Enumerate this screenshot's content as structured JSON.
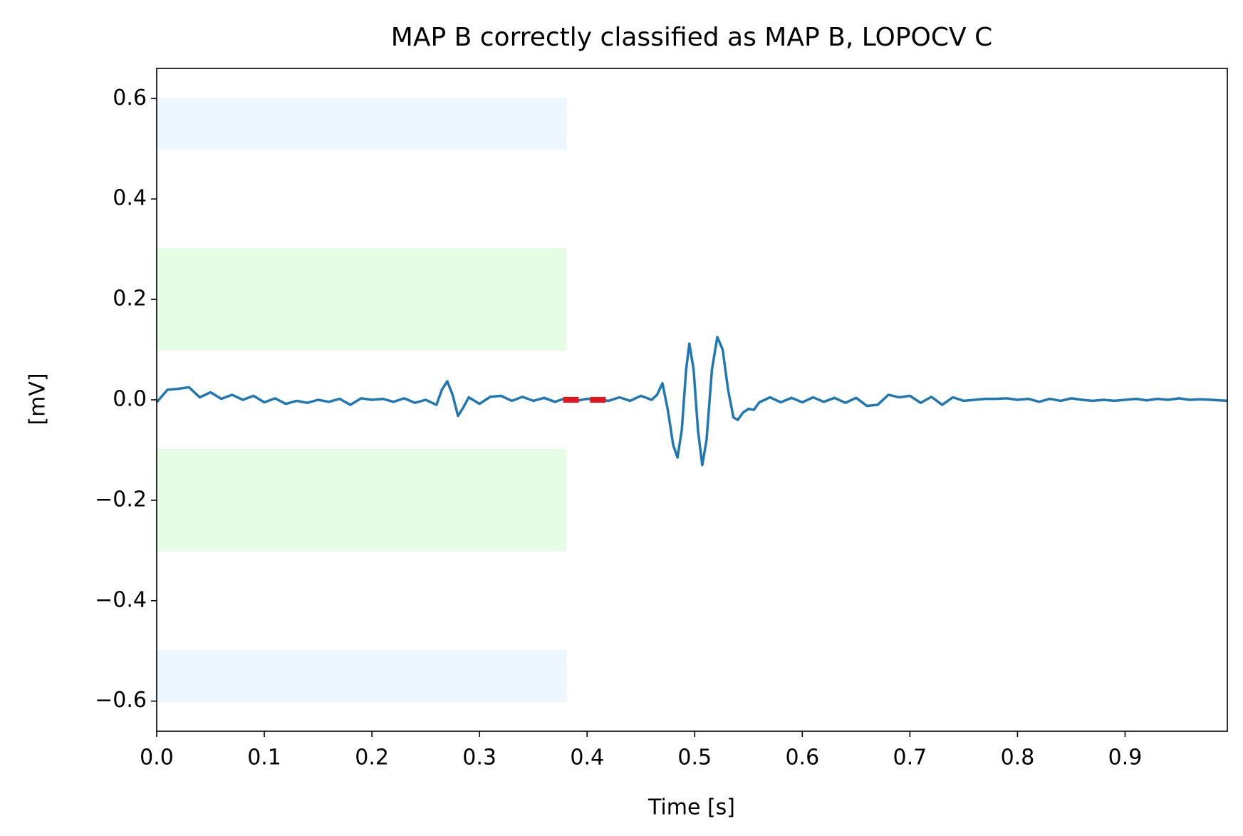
{
  "chart_data": {
    "type": "line",
    "title": "MAP B correctly classified as MAP B, LOPOCV C",
    "x_label": "Time [s]",
    "y_label": "[mV]",
    "xlim": [
      0,
      0.995
    ],
    "ylim": [
      -0.66,
      0.66
    ],
    "xticks": [
      {
        "value": 0,
        "label": "0.0"
      },
      0.1,
      0.2,
      0.3,
      0.4,
      0.5,
      0.6,
      0.7,
      0.8,
      0.9
    ],
    "yticks": [
      {
        "value": -0.6,
        "label": "−0.6"
      },
      {
        "value": -0.4,
        "label": "−0.4"
      },
      {
        "value": -0.2,
        "label": "−0.2"
      },
      {
        "value": 0,
        "label": "0.0"
      },
      0.2,
      0.4,
      0.6
    ],
    "x": [
      0,
      0.01,
      0.02,
      0.03,
      0.04,
      0.05,
      0.06,
      0.07,
      0.08,
      0.09,
      0.1,
      0.11,
      0.12,
      0.13,
      0.14,
      0.15,
      0.16,
      0.17,
      0.18,
      0.19,
      0.2,
      0.21,
      0.22,
      0.23,
      0.24,
      0.25,
      0.26,
      0.265,
      0.27,
      0.275,
      0.28,
      0.285,
      0.29,
      0.3,
      0.31,
      0.32,
      0.33,
      0.34,
      0.35,
      0.36,
      0.37,
      0.38,
      0.39,
      0.4,
      0.41,
      0.42,
      0.43,
      0.44,
      0.45,
      0.46,
      0.465,
      0.47,
      0.475,
      0.48,
      0.484,
      0.488,
      0.492,
      0.495,
      0.499,
      0.503,
      0.507,
      0.511,
      0.516,
      0.521,
      0.526,
      0.531,
      0.536,
      0.54,
      0.545,
      0.55,
      0.555,
      0.56,
      0.57,
      0.58,
      0.59,
      0.6,
      0.61,
      0.62,
      0.63,
      0.64,
      0.65,
      0.66,
      0.67,
      0.68,
      0.69,
      0.7,
      0.71,
      0.72,
      0.73,
      0.74,
      0.75,
      0.76,
      0.77,
      0.78,
      0.79,
      0.8,
      0.81,
      0.82,
      0.83,
      0.84,
      0.85,
      0.86,
      0.87,
      0.88,
      0.89,
      0.9,
      0.91,
      0.92,
      0.93,
      0.94,
      0.95,
      0.96,
      0.97,
      0.98,
      0.995
    ],
    "series": [
      {
        "color": "#1f77b4",
        "values": [
          -0.005,
          0.02,
          0.022,
          0.025,
          0.005,
          0.015,
          0.002,
          0.01,
          0,
          0.008,
          -0.005,
          0.003,
          -0.008,
          -0.002,
          -0.006,
          0,
          -0.004,
          0.002,
          -0.01,
          0.003,
          0,
          0.002,
          -0.004,
          0.003,
          -0.006,
          0,
          -0.01,
          0.02,
          0.037,
          0.01,
          -0.032,
          -0.015,
          0.005,
          -0.008,
          0.006,
          0.008,
          -0.002,
          0.006,
          -0.002,
          0.004,
          -0.004,
          0.003,
          -0.002,
          0.002,
          0,
          -0.002,
          0.005,
          -0.002,
          0.008,
          0,
          0.01,
          0.033,
          -0.02,
          -0.09,
          -0.115,
          -0.06,
          0.06,
          0.112,
          0.06,
          -0.06,
          -0.13,
          -0.08,
          0.06,
          0.125,
          0.1,
          0.02,
          -0.035,
          -0.04,
          -0.025,
          -0.018,
          -0.02,
          -0.005,
          0.005,
          -0.005,
          0.004,
          -0.005,
          0.005,
          -0.004,
          0.004,
          -0.006,
          0.004,
          -0.012,
          -0.01,
          0.01,
          0.005,
          0.008,
          -0.006,
          0.006,
          -0.01,
          0.005,
          -0.002,
          0,
          0.002,
          0.002,
          0.003,
          0,
          0.002,
          -0.004,
          0.002,
          -0.002,
          0.003,
          0,
          -0.002,
          0,
          -0.002,
          0,
          0.002,
          -0.001,
          0.002,
          0,
          0.003,
          0,
          0.001,
          0,
          -0.002
        ]
      }
    ],
    "bands": [
      {
        "x": [
          0,
          0.38
        ],
        "y": [
          0.5,
          0.6
        ],
        "color": "#eef6ff"
      },
      {
        "x": [
          0,
          0.38
        ],
        "y": [
          0.1,
          0.3
        ],
        "color": "#e5fde5"
      },
      {
        "x": [
          0,
          0.38
        ],
        "y": [
          -0.3,
          -0.1
        ],
        "color": "#e5fde5"
      },
      {
        "x": [
          0,
          0.38
        ],
        "y": [
          -0.6,
          -0.5
        ],
        "color": "#eef6ff"
      }
    ],
    "markers": {
      "x": [
        0.385,
        0.41
      ],
      "y": [
        0,
        0
      ],
      "color": "#e8141c"
    }
  }
}
